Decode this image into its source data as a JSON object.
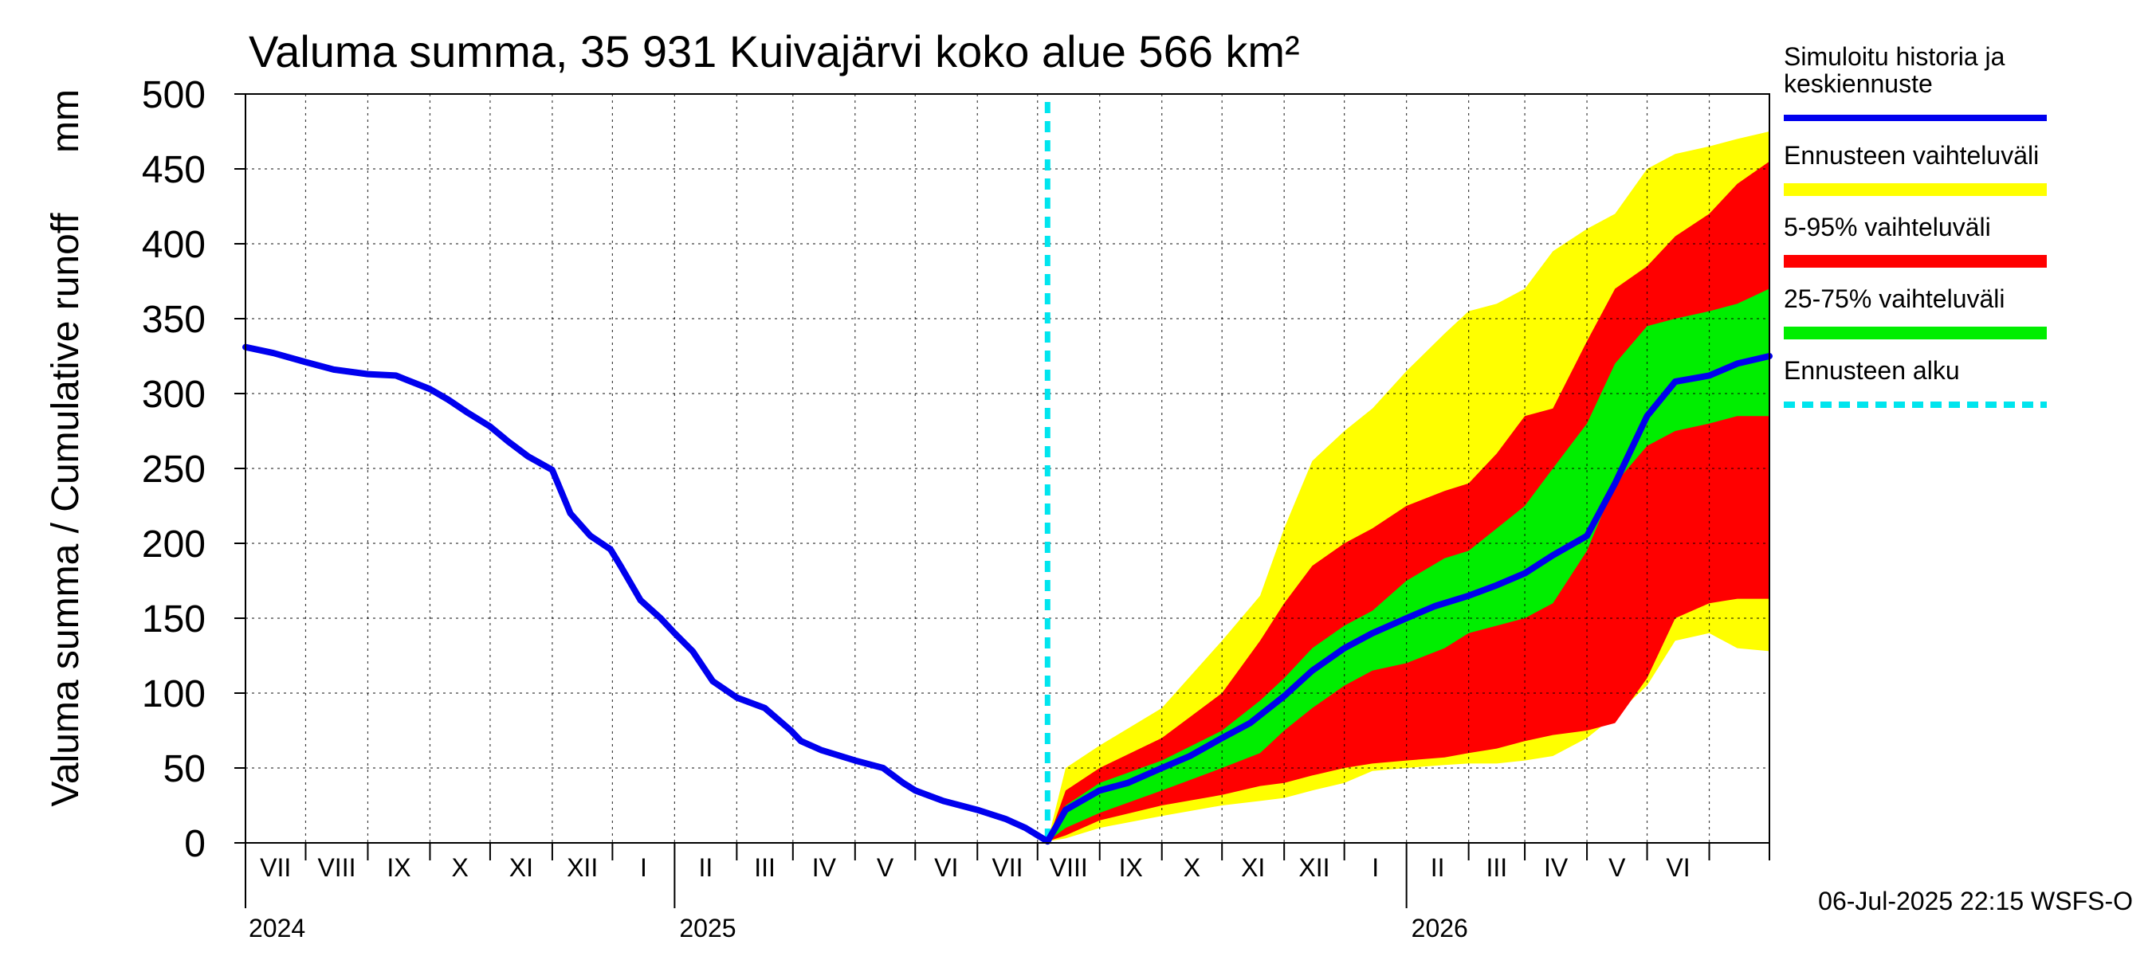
{
  "chart_data": {
    "type": "area",
    "title": "Valuma summa, 35 931 Kuivajärvi koko alue 566 km²",
    "ylabel": "Valuma summa / Cumulative runoff",
    "yunit": "mm",
    "ylim": [
      0,
      500
    ],
    "yticks": [
      0,
      50,
      100,
      150,
      200,
      250,
      300,
      350,
      400,
      450,
      500
    ],
    "x_start": "2024-06-01",
    "x_end": "2026-07-01",
    "forecast_start": "2025-07-06",
    "months": [
      "VII",
      "VIII",
      "IX",
      "X",
      "XI",
      "XII",
      "I",
      "II",
      "III",
      "IV",
      "V",
      "VI",
      "VII",
      "VIII",
      "IX",
      "X",
      "XI",
      "XII",
      "I",
      "II",
      "III",
      "IV",
      "V",
      "VI"
    ],
    "years": [
      "2024",
      "2025",
      "2026"
    ],
    "timestamp": "06-Jul-2025 22:15 WSFS-O",
    "legend": [
      {
        "label": "Simuloitu historia ja keskiennuste",
        "label_lines": [
          "Simuloitu historia ja",
          "keskiennuste"
        ],
        "color": "#0000ee",
        "style": "line"
      },
      {
        "label": "Ennusteen vaihteluväli",
        "label_lines": [
          "Ennusteen vaihteluväli"
        ],
        "color": "#ffff00",
        "style": "band"
      },
      {
        "label": "5-95% vaihteluväli",
        "label_lines": [
          "5-95% vaihteluväli"
        ],
        "color": "#ff0000",
        "style": "band"
      },
      {
        "label": "25-75% vaihteluväli",
        "label_lines": [
          "25-75% vaihteluväli"
        ],
        "color": "#00ee00",
        "style": "band"
      },
      {
        "label": "Ennusteen alku",
        "label_lines": [
          "Ennusteen alku"
        ],
        "color": "#00e5ee",
        "style": "dashed"
      }
    ],
    "history": {
      "name": "Simuloitu historia ja keskiennuste",
      "dates": [
        "2024-06-01",
        "2024-06-15",
        "2024-07-01",
        "2024-07-15",
        "2024-08-01",
        "2024-08-15",
        "2024-09-01",
        "2024-09-10",
        "2024-09-20",
        "2024-10-01",
        "2024-10-10",
        "2024-10-20",
        "2024-11-01",
        "2024-11-10",
        "2024-11-20",
        "2024-11-30",
        "2024-12-05",
        "2024-12-15",
        "2024-12-25",
        "2025-01-01",
        "2025-01-10",
        "2025-01-20",
        "2025-02-01",
        "2025-02-05",
        "2025-02-15",
        "2025-02-28",
        "2025-03-05",
        "2025-03-15",
        "2025-04-01",
        "2025-04-15",
        "2025-04-25",
        "2025-05-01",
        "2025-05-15",
        "2025-06-01",
        "2025-06-15",
        "2025-06-25",
        "2025-07-06"
      ],
      "values": [
        331,
        327,
        321,
        316,
        313,
        312,
        303,
        296,
        287,
        278,
        268,
        258,
        249,
        220,
        205,
        196,
        185,
        162,
        150,
        140,
        128,
        108,
        97,
        95,
        90,
        75,
        68,
        62,
        55,
        50,
        40,
        35,
        28,
        22,
        16,
        10,
        1
      ]
    },
    "series": [
      {
        "name": "Ennusteen vaihteluväli",
        "color": "#ffff00",
        "x": [
          "2025-07-06",
          "2025-07-15",
          "2025-08-01",
          "2025-09-01",
          "2025-10-01",
          "2025-10-20",
          "2025-11-01",
          "2025-11-15",
          "2025-12-01",
          "2025-12-15",
          "2026-01-01",
          "2026-01-20",
          "2026-02-01",
          "2026-02-15",
          "2026-03-01",
          "2026-03-15",
          "2026-04-01",
          "2026-04-15",
          "2026-05-01",
          "2026-05-15",
          "2026-06-01",
          "2026-06-15",
          "2026-07-01"
        ],
        "upper": [
          1,
          50,
          65,
          90,
          135,
          165,
          210,
          255,
          275,
          290,
          315,
          340,
          355,
          360,
          370,
          395,
          410,
          420,
          450,
          460,
          465,
          470,
          475
        ],
        "lower": [
          1,
          3,
          10,
          18,
          25,
          28,
          30,
          35,
          40,
          48,
          50,
          52,
          53,
          53,
          55,
          58,
          70,
          85,
          105,
          135,
          140,
          130,
          128
        ]
      },
      {
        "name": "5-95% vaihteluväli",
        "color": "#ff0000",
        "x": [
          "2025-07-06",
          "2025-07-15",
          "2025-08-01",
          "2025-09-01",
          "2025-10-01",
          "2025-10-20",
          "2025-11-01",
          "2025-11-15",
          "2025-12-01",
          "2025-12-15",
          "2026-01-01",
          "2026-01-20",
          "2026-02-01",
          "2026-02-15",
          "2026-03-01",
          "2026-03-15",
          "2026-04-01",
          "2026-04-15",
          "2026-05-01",
          "2026-05-15",
          "2026-06-01",
          "2026-06-15",
          "2026-07-01"
        ],
        "upper": [
          1,
          35,
          50,
          70,
          100,
          135,
          160,
          185,
          200,
          210,
          225,
          235,
          240,
          260,
          285,
          290,
          335,
          370,
          385,
          405,
          420,
          440,
          455
        ],
        "lower": [
          1,
          5,
          15,
          25,
          32,
          38,
          40,
          45,
          50,
          53,
          55,
          57,
          60,
          63,
          68,
          72,
          75,
          80,
          110,
          150,
          160,
          163,
          163
        ]
      },
      {
        "name": "25-75% vaihteluväli",
        "color": "#00ee00",
        "x": [
          "2025-07-06",
          "2025-07-15",
          "2025-08-01",
          "2025-09-01",
          "2025-10-01",
          "2025-10-20",
          "2025-11-01",
          "2025-11-15",
          "2025-12-01",
          "2025-12-15",
          "2026-01-01",
          "2026-01-20",
          "2026-02-01",
          "2026-02-15",
          "2026-03-01",
          "2026-03-15",
          "2026-04-01",
          "2026-04-15",
          "2026-05-01",
          "2026-05-15",
          "2026-06-01",
          "2026-06-15",
          "2026-07-01"
        ],
        "upper": [
          1,
          25,
          40,
          55,
          75,
          95,
          110,
          130,
          145,
          155,
          175,
          190,
          195,
          210,
          225,
          250,
          280,
          320,
          345,
          350,
          355,
          360,
          370
        ],
        "lower": [
          1,
          10,
          20,
          35,
          50,
          60,
          75,
          90,
          105,
          115,
          120,
          130,
          140,
          145,
          150,
          160,
          195,
          240,
          265,
          275,
          280,
          285,
          285
        ]
      },
      {
        "name": "Simuloitu historia ja keskiennuste",
        "color": "#0000ee",
        "x": [
          "2025-07-06",
          "2025-07-15",
          "2025-08-01",
          "2025-08-15",
          "2025-09-01",
          "2025-09-15",
          "2025-10-01",
          "2025-10-15",
          "2025-11-01",
          "2025-11-15",
          "2025-12-01",
          "2025-12-15",
          "2026-01-01",
          "2026-01-15",
          "2026-02-01",
          "2026-02-15",
          "2026-03-01",
          "2026-03-15",
          "2026-04-01",
          "2026-04-15",
          "2026-05-01",
          "2026-05-15",
          "2026-06-01",
          "2026-06-15",
          "2026-07-01"
        ],
        "values": [
          1,
          22,
          35,
          40,
          50,
          58,
          70,
          80,
          98,
          115,
          130,
          140,
          150,
          158,
          165,
          172,
          180,
          192,
          205,
          240,
          285,
          308,
          312,
          320,
          325
        ]
      }
    ]
  }
}
